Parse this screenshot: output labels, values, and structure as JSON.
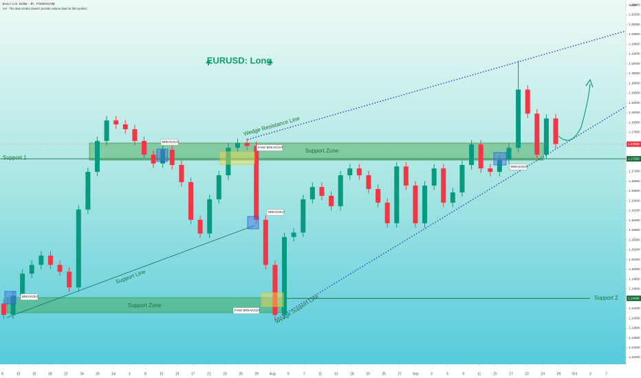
{
  "header": {
    "symbol": "Euro / U.S. Dollar · 4h · FOREXCOM",
    "volume_note": "Vol · The data vendor doesn't provide volume data for this symbol.",
    "currency": "USD"
  },
  "chart_data": {
    "type": "candlestick",
    "title": "EURUSD: Long",
    "up_color": "#089981",
    "down_color": "#f23645",
    "grid": false,
    "open": [
      1.143,
      1.1407,
      1.1446,
      1.1491,
      1.1509,
      1.1528,
      1.1509,
      1.1495,
      1.1463,
      1.1622,
      1.1699,
      1.1762,
      1.1804,
      1.1796,
      1.1786,
      1.1762,
      1.1734,
      1.1716,
      1.1744,
      1.1713,
      1.1678,
      1.1601,
      1.1573,
      1.1643,
      1.1692,
      1.1748,
      1.1758,
      1.1752,
      1.1601,
      1.1509,
      1.1407,
      1.1566,
      1.1575,
      1.1643,
      1.1668,
      1.165,
      1.1629,
      1.1692,
      1.1706,
      1.1692,
      1.1664,
      1.1636,
      1.1594,
      1.171,
      1.1671,
      1.1594,
      1.1671,
      1.1706,
      1.1636,
      1.1657,
      1.1713,
      1.1755,
      1.1706,
      1.1699,
      1.1724,
      1.1748,
      1.1867,
      1.1818,
      1.1734,
      1.1808
    ],
    "high": [
      1.1439,
      1.1455,
      1.15,
      1.1518,
      1.1537,
      1.1537,
      1.1518,
      1.1504,
      1.1631,
      1.1708,
      1.1771,
      1.1813,
      1.1813,
      1.1805,
      1.1795,
      1.1771,
      1.1743,
      1.1753,
      1.1753,
      1.1722,
      1.1687,
      1.161,
      1.1652,
      1.1701,
      1.1757,
      1.1767,
      1.1767,
      1.1761,
      1.161,
      1.1518,
      1.1575,
      1.1584,
      1.1652,
      1.1677,
      1.1677,
      1.1659,
      1.1701,
      1.1715,
      1.1715,
      1.1701,
      1.1673,
      1.1645,
      1.1719,
      1.1719,
      1.168,
      1.168,
      1.1715,
      1.1715,
      1.1666,
      1.1722,
      1.1764,
      1.1764,
      1.1715,
      1.1733,
      1.1757,
      1.1926,
      1.1876,
      1.1827,
      1.1817,
      1.1817
    ],
    "low": [
      1.1398,
      1.1398,
      1.1437,
      1.1482,
      1.15,
      1.15,
      1.1486,
      1.1454,
      1.1454,
      1.1613,
      1.169,
      1.1753,
      1.1787,
      1.1777,
      1.1753,
      1.1725,
      1.1707,
      1.1707,
      1.1704,
      1.1669,
      1.1592,
      1.1564,
      1.1564,
      1.1634,
      1.1683,
      1.1739,
      1.1743,
      1.1592,
      1.15,
      1.1395,
      1.1398,
      1.1557,
      1.1566,
      1.1634,
      1.1641,
      1.162,
      1.162,
      1.1683,
      1.1683,
      1.1655,
      1.1627,
      1.1585,
      1.1585,
      1.1662,
      1.1585,
      1.1585,
      1.1662,
      1.1627,
      1.1627,
      1.1648,
      1.1704,
      1.1697,
      1.169,
      1.169,
      1.1715,
      1.1739,
      1.1809,
      1.1725,
      1.1725,
      1.1747
    ],
    "close": [
      1.1407,
      1.1446,
      1.1491,
      1.1509,
      1.1528,
      1.1509,
      1.1495,
      1.1463,
      1.1622,
      1.1699,
      1.1762,
      1.1804,
      1.1796,
      1.1786,
      1.1762,
      1.1734,
      1.1716,
      1.1744,
      1.1713,
      1.1678,
      1.1601,
      1.1573,
      1.1643,
      1.1692,
      1.1748,
      1.1758,
      1.1752,
      1.1601,
      1.1509,
      1.1407,
      1.1566,
      1.1575,
      1.1643,
      1.1668,
      1.165,
      1.1629,
      1.1692,
      1.1706,
      1.1692,
      1.1664,
      1.1636,
      1.1594,
      1.171,
      1.1671,
      1.1594,
      1.1671,
      1.1706,
      1.1636,
      1.1657,
      1.1713,
      1.1755,
      1.1706,
      1.1699,
      1.1724,
      1.1748,
      1.1867,
      1.1818,
      1.1734,
      1.1808,
      1.1756
    ],
    "xlim": [
      -0.4,
      66.5
    ],
    "xticks": [
      {
        "value": -0.15,
        "label": "8"
      },
      {
        "value": 1.55,
        "label": "10"
      },
      {
        "value": 3.25,
        "label": "15"
      },
      {
        "value": 4.95,
        "label": "18"
      },
      {
        "value": 6.65,
        "label": "22"
      },
      {
        "value": 8.35,
        "label": "24"
      },
      {
        "value": 10.04,
        "label": "26"
      },
      {
        "value": 11.74,
        "label": "Jul"
      },
      {
        "value": 13.44,
        "label": "3"
      },
      {
        "value": 15.14,
        "label": "8"
      },
      {
        "value": 16.84,
        "label": "10"
      },
      {
        "value": 18.54,
        "label": "15"
      },
      {
        "value": 20.24,
        "label": "17"
      },
      {
        "value": 21.94,
        "label": "21"
      },
      {
        "value": 23.64,
        "label": "23"
      },
      {
        "value": 25.34,
        "label": "25"
      },
      {
        "value": 27.03,
        "label": "29"
      },
      {
        "value": 28.73,
        "label": "Aug"
      },
      {
        "value": 30.43,
        "label": "5"
      },
      {
        "value": 32.13,
        "label": "7"
      },
      {
        "value": 33.83,
        "label": "11"
      },
      {
        "value": 35.53,
        "label": "13"
      },
      {
        "value": 37.23,
        "label": "18"
      },
      {
        "value": 38.93,
        "label": "20"
      },
      {
        "value": 40.63,
        "label": "25"
      },
      {
        "value": 42.33,
        "label": "27"
      },
      {
        "value": 44.02,
        "label": "Sep"
      },
      {
        "value": 45.72,
        "label": "3"
      },
      {
        "value": 47.42,
        "label": "5"
      },
      {
        "value": 49.12,
        "label": "9"
      },
      {
        "value": 50.82,
        "label": "11"
      },
      {
        "value": 52.52,
        "label": "15"
      },
      {
        "value": 54.22,
        "label": "17"
      },
      {
        "value": 55.92,
        "label": "22"
      },
      {
        "value": 57.62,
        "label": "24"
      },
      {
        "value": 59.32,
        "label": "29"
      },
      {
        "value": 61.01,
        "label": "Oct"
      },
      {
        "value": 62.71,
        "label": "3"
      },
      {
        "value": 64.41,
        "label": "7"
      }
    ],
    "ylim": [
      1.1306,
      1.205
    ],
    "yticks": [
      {
        "value": 1.132,
        "label": "1.13200"
      },
      {
        "value": 1.134,
        "label": "1.13400"
      },
      {
        "value": 1.136,
        "label": "1.13600"
      },
      {
        "value": 1.138,
        "label": "1.13800"
      },
      {
        "value": 1.14,
        "label": "1.14000"
      },
      {
        "value": 1.142,
        "label": "1.14200"
      },
      {
        "value": 1.146,
        "label": "1.14600"
      },
      {
        "value": 1.148,
        "label": "1.14800"
      },
      {
        "value": 1.15,
        "label": "1.15000"
      },
      {
        "value": 1.152,
        "label": "1.15200"
      },
      {
        "value": 1.154,
        "label": "1.15400"
      },
      {
        "value": 1.156,
        "label": "1.15600"
      },
      {
        "value": 1.158,
        "label": "1.15800"
      },
      {
        "value": 1.16,
        "label": "1.16000"
      },
      {
        "value": 1.162,
        "label": "1.16200"
      },
      {
        "value": 1.164,
        "label": "1.16400"
      },
      {
        "value": 1.166,
        "label": "1.16600"
      },
      {
        "value": 1.168,
        "label": "1.16800"
      },
      {
        "value": 1.17,
        "label": "1.17000"
      },
      {
        "value": 1.178,
        "label": "1.17800"
      },
      {
        "value": 1.18,
        "label": "1.18000"
      },
      {
        "value": 1.182,
        "label": "1.18200"
      },
      {
        "value": 1.184,
        "label": "1.18400"
      },
      {
        "value": 1.186,
        "label": "1.18600"
      },
      {
        "value": 1.188,
        "label": "1.18800"
      },
      {
        "value": 1.19,
        "label": "1.19000"
      },
      {
        "value": 1.192,
        "label": "1.19200"
      },
      {
        "value": 1.194,
        "label": "1.19400"
      },
      {
        "value": 1.196,
        "label": "1.19600"
      },
      {
        "value": 1.198,
        "label": "1.19800"
      },
      {
        "value": 1.2,
        "label": "1.20000"
      },
      {
        "value": 1.202,
        "label": "1.20200"
      },
      {
        "value": 1.204,
        "label": "1.20400"
      }
    ],
    "support_1": {
      "name": "Support 1",
      "price": 1.17256
    },
    "support_2": {
      "name": "Support 2",
      "price": 1.14406
    },
    "last_price": 1.17556,
    "zone_labels": [
      "Support Zone",
      "Support Zone"
    ],
    "line_labels": {
      "support_line": "Support Line",
      "wedge_resistance": "Wedge Resistance Line",
      "wedge_support": "Wedge Support Line"
    },
    "breakout_labels": [
      "BREAKOUT",
      "BREAKOUT",
      "BREAKOUT",
      "BREAKOUT"
    ],
    "fake_breakout_labels": [
      "FAKE BREAKOUT",
      "FAKE BREAKOUT"
    ]
  }
}
